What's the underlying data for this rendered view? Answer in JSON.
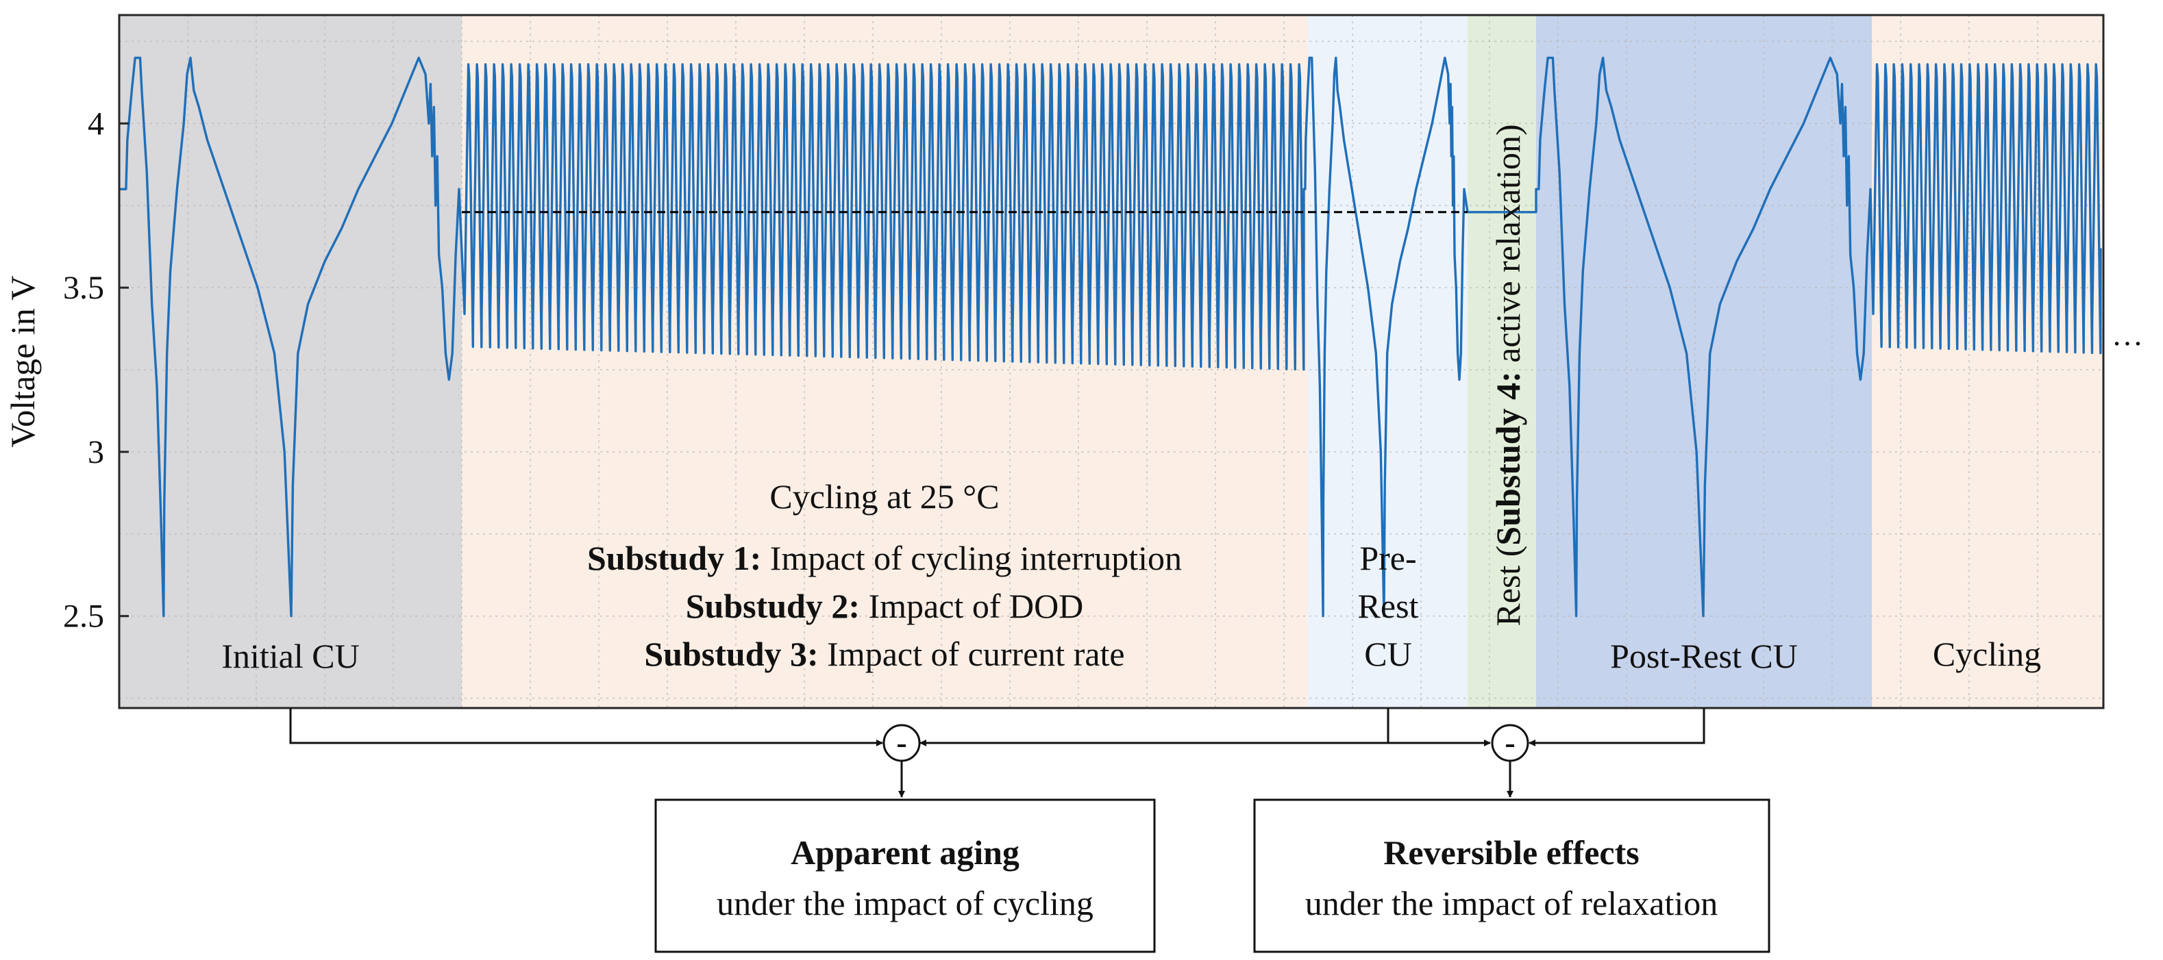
{
  "chart_data": {
    "type": "line",
    "ylabel": "Voltage in V",
    "xlabel": "",
    "ylim": [
      2.22,
      4.33
    ],
    "yticks": [
      2.5,
      3,
      3.5,
      4
    ],
    "ytick_labels": [
      "2.5",
      "3",
      "3.5",
      "4"
    ],
    "grid": true,
    "continuation_marker": "…",
    "reference_line_voltage": 3.73,
    "phases": [
      {
        "id": "initial-cu",
        "labels": [
          "Initial CU"
        ],
        "color": "#d9d8db"
      },
      {
        "id": "cycling",
        "labels": [
          "Cycling at 25 °C"
        ],
        "color": "#fbeee5",
        "substudies": [
          {
            "bold": "Substudy 1:",
            "text": " Impact of cycling interruption"
          },
          {
            "bold": "Substudy 2:",
            "text": " Impact of DOD"
          },
          {
            "bold": "Substudy 3:",
            "text": " Impact of current rate"
          }
        ]
      },
      {
        "id": "pre-rest-cu",
        "labels": [
          "Pre-",
          "Rest",
          "CU"
        ],
        "color": "#edf3fb"
      },
      {
        "id": "rest",
        "label_prefix": "Rest (",
        "label_bold": "Substudy 4:",
        "label_suffix": " active relaxation)",
        "color": "#e2eed9"
      },
      {
        "id": "post-rest-cu",
        "labels": [
          "Post-Rest CU"
        ],
        "color": "#c6d3ec"
      },
      {
        "id": "cycling-2",
        "labels": [
          "Cycling"
        ],
        "color": "#fbeee5"
      }
    ],
    "cycling_block_1": {
      "cycles": 98,
      "v_max": 4.18,
      "v_min_start": 3.32,
      "v_min_end": 3.25
    },
    "cycling_block_2": {
      "cycles": 27,
      "v_max": 4.18,
      "v_min_start": 3.32,
      "v_min_end": 3.3
    },
    "check_up_voltage_profile": {
      "v_max": 4.2,
      "v_min": 2.5,
      "rest_voltage": 3.8
    }
  },
  "diagram": {
    "operator_symbol": "-",
    "results": [
      {
        "title": "Apparent aging",
        "subtitle": "under the impact of cycling"
      },
      {
        "title": "Reversible effects",
        "subtitle": "under the impact of relaxation"
      }
    ]
  },
  "colors": {
    "line": "#1f6fb9",
    "frame": "#262626",
    "grid": "#b8b8b8"
  }
}
